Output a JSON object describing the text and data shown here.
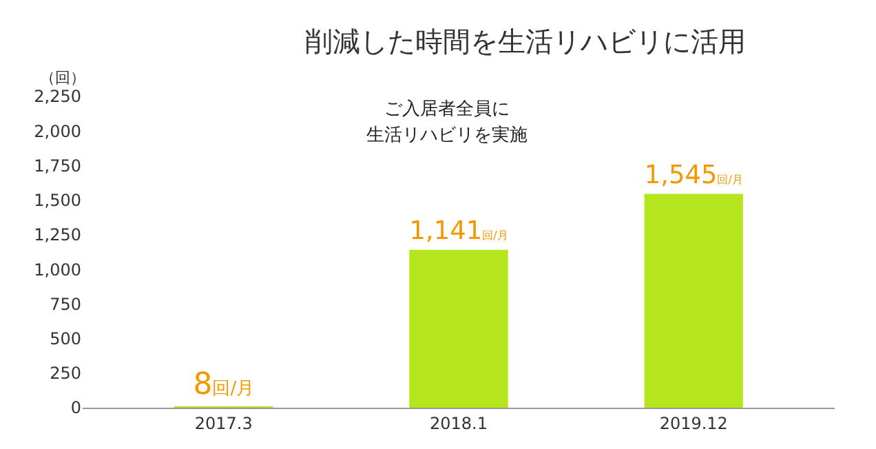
{
  "chart_data": {
    "type": "bar",
    "title": "削減した時間を生活リハビリに活用",
    "ylabel": "（回）",
    "categories": [
      "2017.3",
      "2018.1",
      "2019.12"
    ],
    "values": [
      8,
      1141,
      1545
    ],
    "value_labels": [
      "8回/月",
      "1,141回/月",
      "1,545回/月"
    ],
    "color": "#b5e61d",
    "ylim": [
      0,
      2250
    ],
    "yticks": [
      0,
      250,
      500,
      750,
      {
        "value": 1000,
        "label": "1,000"
      },
      {
        "value": 1250,
        "label": "1,250"
      },
      {
        "value": 1500,
        "label": "1,500"
      },
      {
        "value": 1750,
        "label": "1,750"
      },
      {
        "value": 2000,
        "label": "2,000"
      },
      {
        "value": 2250,
        "label": "2,250"
      }
    ],
    "annotations": [
      "ご入居者全員に",
      "生活リハビリを実施"
    ]
  }
}
